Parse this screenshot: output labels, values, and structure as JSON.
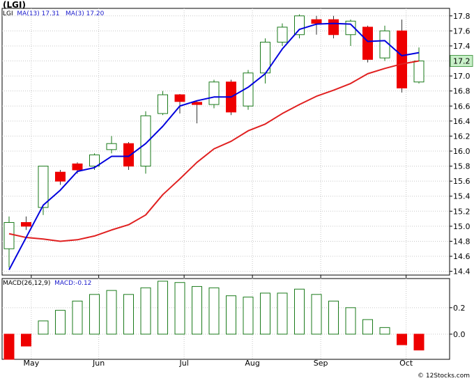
{
  "title": "(LGI)",
  "price_legend": {
    "symbol": "LGI",
    "ma13_label": "MA(13)",
    "ma13_value": "17.31",
    "ma3_label": "MA(3)",
    "ma3_value": "17.20"
  },
  "macd_legend": {
    "label": "MACD(26,12,9)",
    "value_label": "MACD:-0.12"
  },
  "watermark": "© 12Stocks.com",
  "colors": {
    "up_candle": "#1a7a1a",
    "down_candle": "#ee0000",
    "ma13": "#0000dd",
    "ma3": "#e02020",
    "grid": "#c8c8c8",
    "last_price_bg": "#c8f0c8"
  },
  "chart_data": [
    {
      "type": "candlestick",
      "ylim": [
        14.35,
        17.9
      ],
      "grid": true,
      "y_ticks": [
        "14.4",
        "14.6",
        "14.8",
        "15.0",
        "15.2",
        "15.4",
        "15.6",
        "15.8",
        "16.0",
        "16.2",
        "16.4",
        "16.6",
        "16.8",
        "17.0",
        "17.2",
        "17.4",
        "17.6",
        "17.8"
      ],
      "month_labels": [
        {
          "label": "May",
          "week": 1.3
        },
        {
          "label": "Jun",
          "week": 5.25
        },
        {
          "label": "Jul",
          "week": 10.25
        },
        {
          "label": "Aug",
          "week": 14.25
        },
        {
          "label": "Sep",
          "week": 18.25
        },
        {
          "label": "Oct",
          "week": 23.25
        }
      ],
      "last_price": "17.2",
      "candles": [
        {
          "o": 14.7,
          "h": 15.13,
          "l": 14.45,
          "c": 15.05
        },
        {
          "o": 15.05,
          "h": 15.13,
          "l": 14.95,
          "c": 15.0
        },
        {
          "o": 15.25,
          "h": 15.8,
          "l": 15.15,
          "c": 15.8
        },
        {
          "o": 15.72,
          "h": 15.75,
          "l": 15.55,
          "c": 15.6
        },
        {
          "o": 15.83,
          "h": 15.85,
          "l": 15.7,
          "c": 15.75
        },
        {
          "o": 15.8,
          "h": 15.97,
          "l": 15.75,
          "c": 15.95
        },
        {
          "o": 16.02,
          "h": 16.2,
          "l": 15.97,
          "c": 16.1
        },
        {
          "o": 16.1,
          "h": 16.12,
          "l": 15.75,
          "c": 15.8
        },
        {
          "o": 15.8,
          "h": 16.53,
          "l": 15.7,
          "c": 16.47
        },
        {
          "o": 16.5,
          "h": 16.8,
          "l": 16.48,
          "c": 16.75
        },
        {
          "o": 16.75,
          "h": 16.76,
          "l": 16.5,
          "c": 16.66
        },
        {
          "o": 16.65,
          "h": 16.66,
          "l": 16.37,
          "c": 16.62
        },
        {
          "o": 16.62,
          "h": 16.95,
          "l": 16.57,
          "c": 16.92
        },
        {
          "o": 16.92,
          "h": 16.95,
          "l": 16.48,
          "c": 16.52
        },
        {
          "o": 16.6,
          "h": 17.08,
          "l": 16.55,
          "c": 17.04
        },
        {
          "o": 17.04,
          "h": 17.5,
          "l": 16.9,
          "c": 17.45
        },
        {
          "o": 17.45,
          "h": 17.7,
          "l": 17.4,
          "c": 17.65
        },
        {
          "o": 17.55,
          "h": 17.82,
          "l": 17.5,
          "c": 17.8
        },
        {
          "o": 17.75,
          "h": 17.8,
          "l": 17.55,
          "c": 17.7
        },
        {
          "o": 17.75,
          "h": 17.8,
          "l": 17.5,
          "c": 17.55
        },
        {
          "o": 17.55,
          "h": 17.75,
          "l": 17.4,
          "c": 17.73
        },
        {
          "o": 17.65,
          "h": 17.67,
          "l": 17.18,
          "c": 17.22
        },
        {
          "o": 17.24,
          "h": 17.67,
          "l": 17.2,
          "c": 17.6
        },
        {
          "o": 17.6,
          "h": 17.75,
          "l": 16.78,
          "c": 16.84
        },
        {
          "o": 16.92,
          "h": 17.38,
          "l": 16.9,
          "c": 17.2
        }
      ],
      "ma13": {
        "start": 0,
        "values": [
          14.42,
          14.85,
          15.28,
          15.48,
          15.73,
          15.78,
          15.93,
          15.93,
          16.1,
          16.33,
          16.6,
          16.67,
          16.72,
          16.72,
          16.85,
          17.03,
          17.36,
          17.62,
          17.69,
          17.7,
          17.69,
          17.46,
          17.47,
          17.27,
          17.31
        ]
      },
      "ma3": {
        "start": 0,
        "values": [
          14.9,
          14.85,
          14.83,
          14.8,
          14.82,
          14.87,
          14.95,
          15.02,
          15.15,
          15.42,
          15.63,
          15.85,
          16.03,
          16.13,
          16.27,
          16.36,
          16.5,
          16.62,
          16.73,
          16.81,
          16.9,
          17.03,
          17.1,
          17.16,
          17.2
        ]
      }
    },
    {
      "type": "bar",
      "series_label": "MACD(26,12,9)",
      "ylim": [
        -0.19,
        0.42
      ],
      "y_ticks": [
        "0.2",
        "0.0"
      ],
      "month_labels": [
        "May",
        "Jun",
        "Jul",
        "Aug",
        "Sep",
        "Oct"
      ],
      "values": [
        -0.19,
        -0.09,
        0.1,
        0.18,
        0.25,
        0.3,
        0.33,
        0.3,
        0.35,
        0.4,
        0.39,
        0.36,
        0.35,
        0.29,
        0.28,
        0.31,
        0.31,
        0.34,
        0.3,
        0.25,
        0.2,
        0.11,
        0.05,
        -0.08,
        -0.12
      ]
    }
  ]
}
